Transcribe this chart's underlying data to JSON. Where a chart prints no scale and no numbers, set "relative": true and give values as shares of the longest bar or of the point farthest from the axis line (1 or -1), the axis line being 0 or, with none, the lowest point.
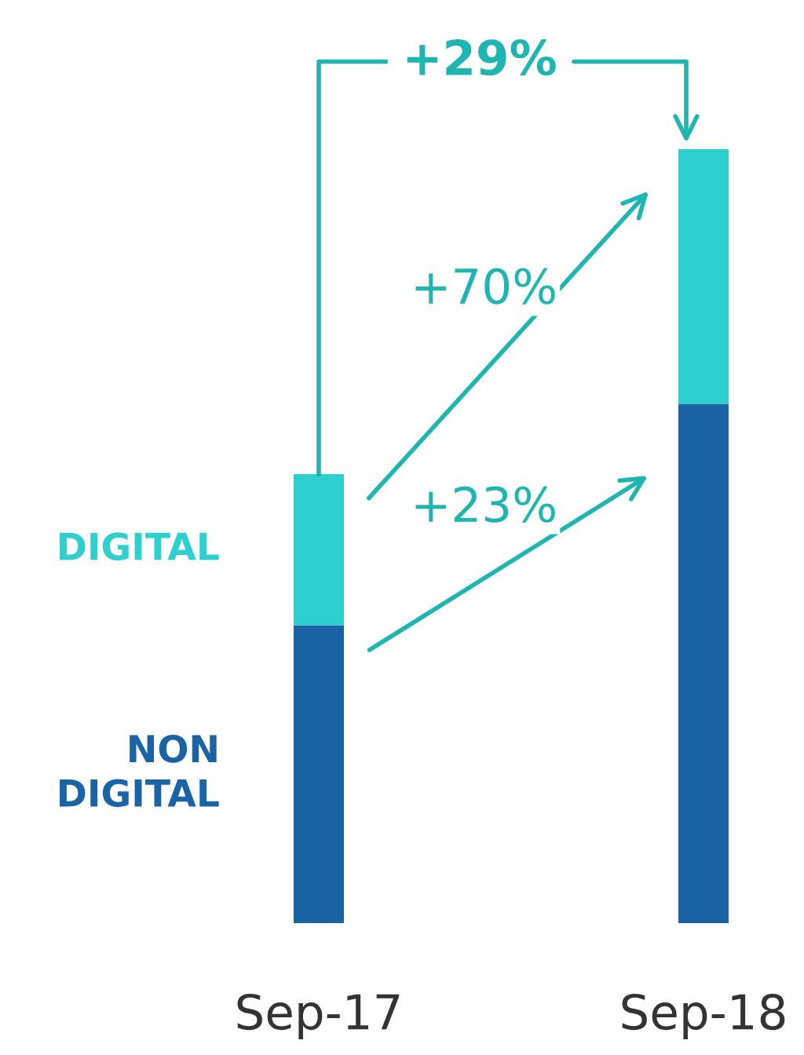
{
  "chart_data": {
    "type": "bar",
    "stacked": true,
    "relative": true,
    "categories": [
      "Sep-17",
      "Sep-18"
    ],
    "series": [
      {
        "name": "NON\nDIGITAL",
        "color": "#1a64a6",
        "values": [
          0.385,
          0.671
        ]
      },
      {
        "name": "DIGITAL",
        "color": "#2ecfcf",
        "values": [
          0.195,
          0.329
        ]
      }
    ],
    "annotations": [
      "+29%",
      "+70%",
      "+23%"
    ],
    "legend": false,
    "grid": false
  }
}
